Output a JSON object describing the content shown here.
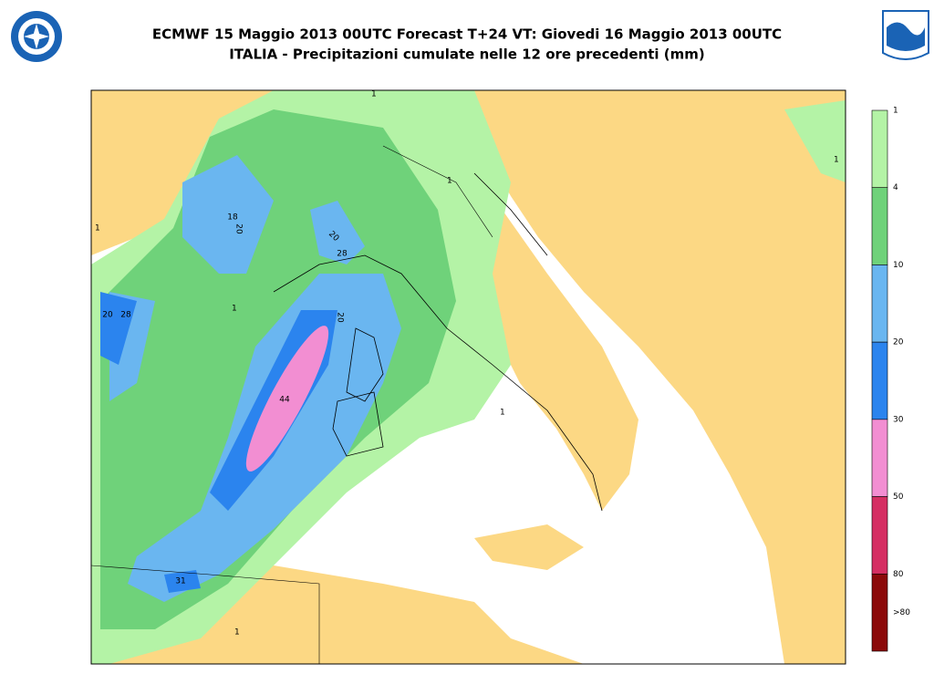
{
  "header": {
    "title_lines": [
      "ECMWF 15 Maggio 2013 00UTC Forecast T+24 VT: Giovedi 16 Maggio 2013 00UTC",
      "ITALIA - Precipitazioni cumulate nelle 12 ore precedenti (mm)"
    ]
  },
  "legend": {
    "levels": [
      "1",
      "4",
      "10",
      "20",
      "30",
      "50",
      "80"
    ],
    "top_label": ">80",
    "colors": [
      "#b4f3a6",
      "#6fd27a",
      "#6ab6f0",
      "#2b84ee",
      "#f28ed2",
      "#d52f63",
      "#8b0a0a"
    ]
  },
  "map": {
    "contour_labels": [
      "18",
      "20",
      "20",
      "28",
      "20",
      "28",
      "20",
      "44",
      "31",
      "1",
      "1",
      "1",
      "1",
      "1",
      "1",
      "1"
    ]
  }
}
